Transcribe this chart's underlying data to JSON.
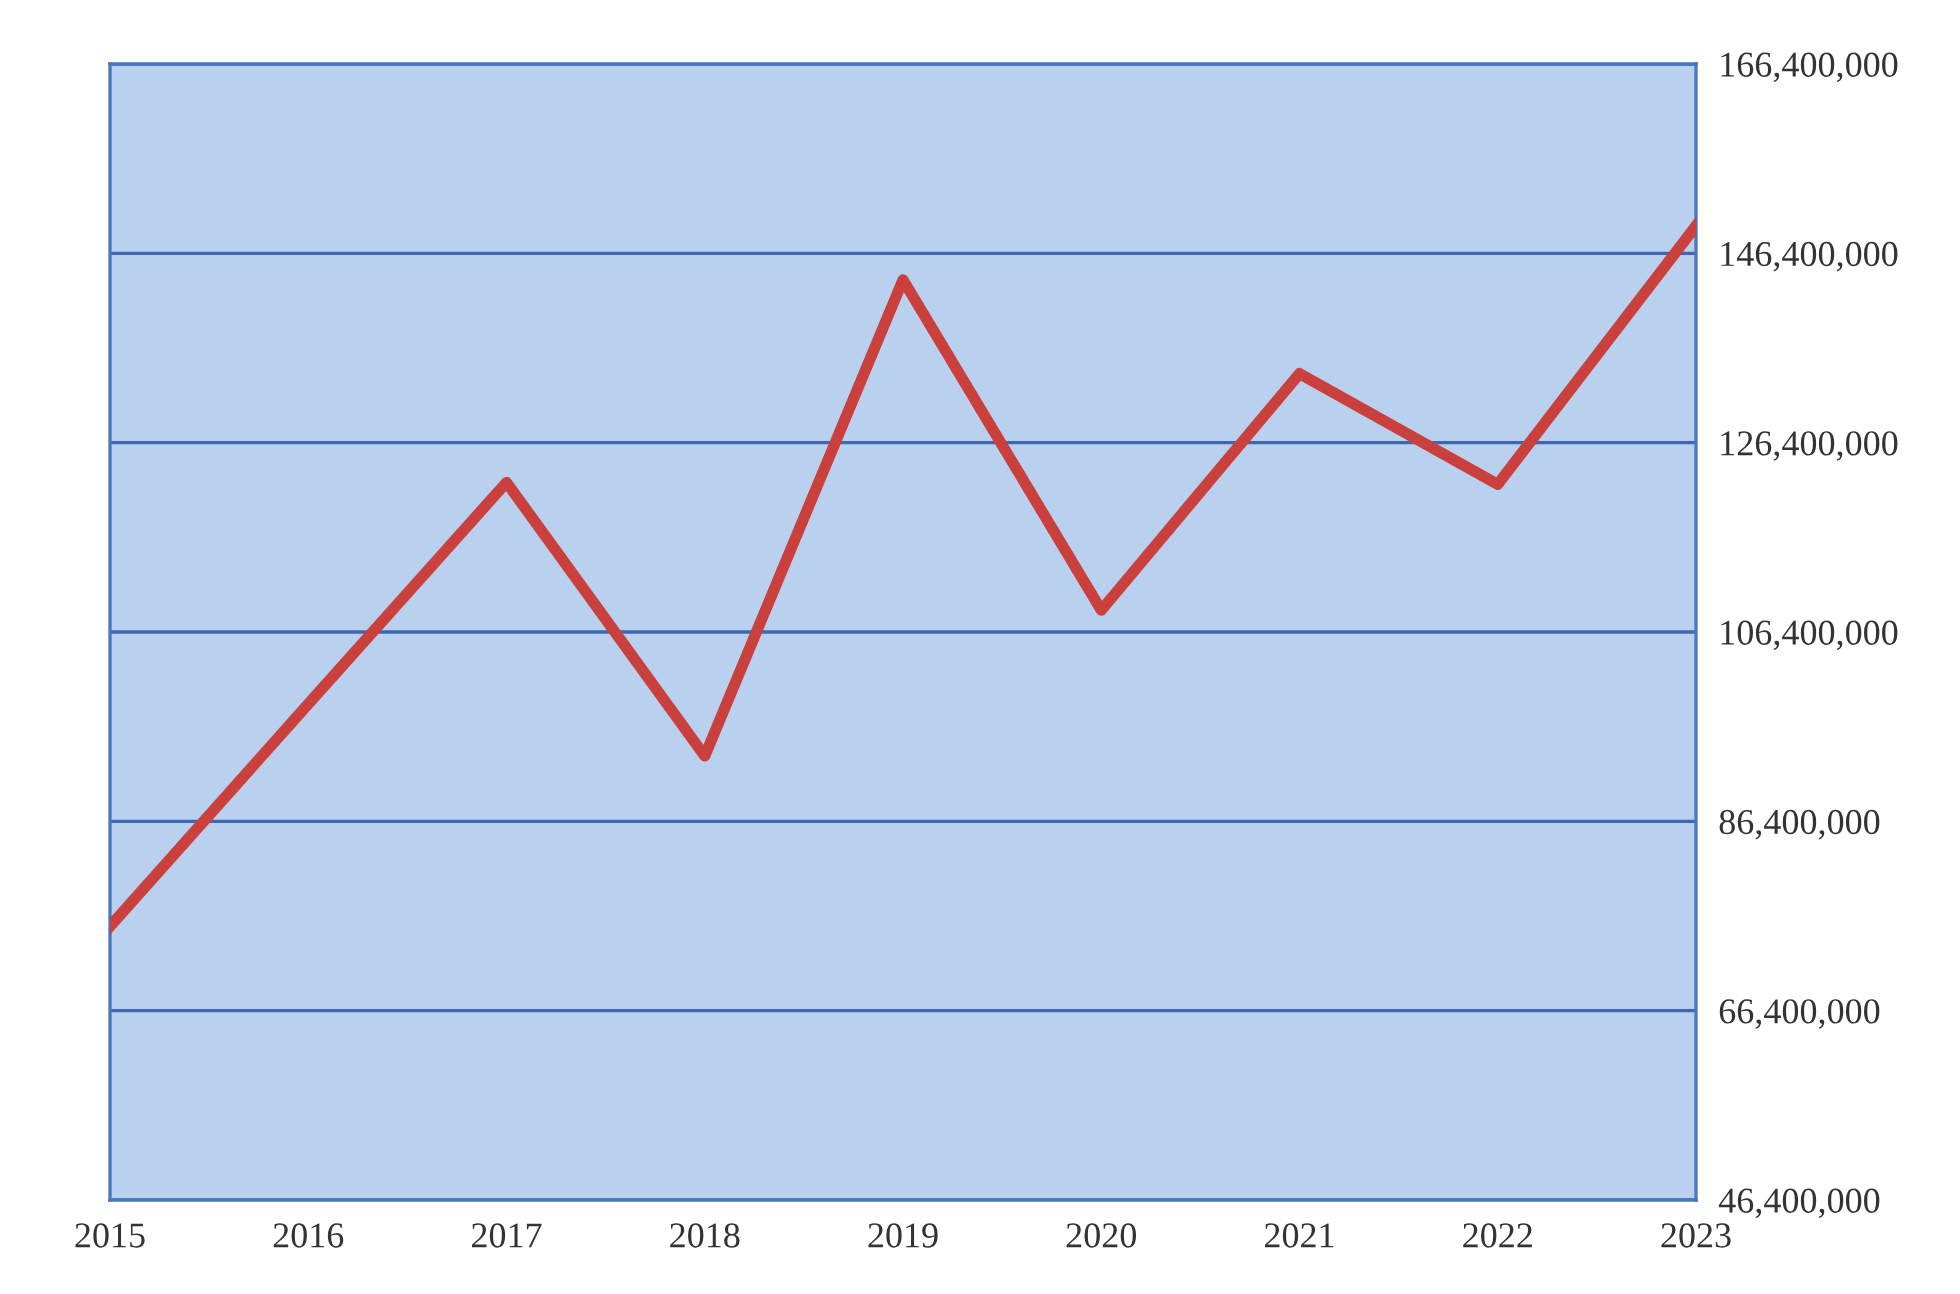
{
  "chart_data": {
    "type": "line",
    "categories": [
      "2015",
      "2016",
      "2017",
      "2018",
      "2019",
      "2020",
      "2021",
      "2022",
      "2023"
    ],
    "series": [
      {
        "color": "#c9403d",
        "values": [
          75300000,
          98800000,
          122200000,
          93300000,
          143600000,
          108700000,
          133700000,
          122000000,
          149300000
        ]
      }
    ],
    "ylim": [
      46400000,
      166400000
    ],
    "yticks": [
      {
        "value": 46400000,
        "label": "46,400,000"
      },
      {
        "value": 66400000,
        "label": "66,400,000"
      },
      {
        "value": 86400000,
        "label": "86,400,000"
      },
      {
        "value": 106400000,
        "label": "106,400,000"
      },
      {
        "value": 126400000,
        "label": "126,400,000"
      },
      {
        "value": 146400000,
        "label": "146,400,000"
      },
      {
        "value": 166400000,
        "label": "166,400,000"
      }
    ],
    "grid": "y",
    "legend": false,
    "marker": "none",
    "line_style": "solid"
  }
}
